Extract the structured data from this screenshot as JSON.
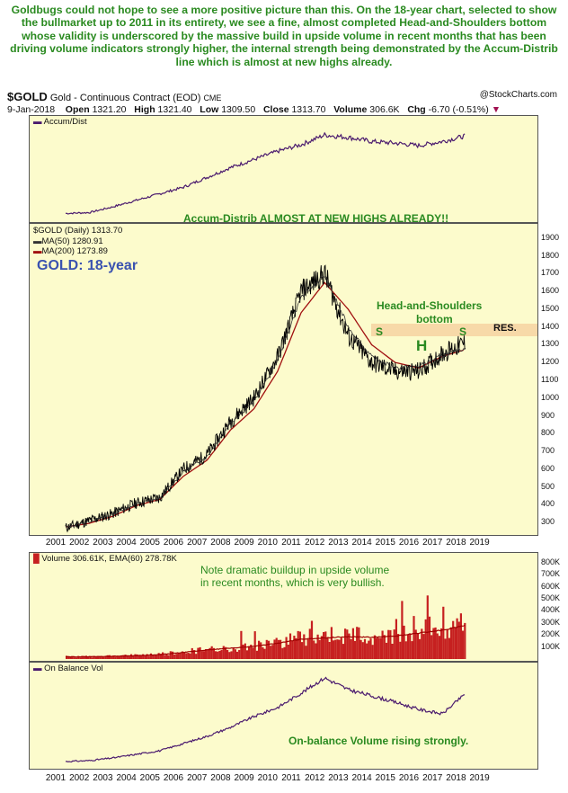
{
  "headline": "Goldbugs could not hope to see a more positive picture than this. On the 18-year chart, selected to show the bullmarket up to 2011 in its entirety, we see a fine, almost completed Head-and-Shoulders bottom whose validity is underscored by the massive build in upside volume in recent months that has been driving volume indicators strongly higher, the internal strength being demonstrated by the Accum-Distrib line which is almost at new highs already.",
  "header": {
    "symbol": "$GOLD",
    "description": "Gold - Continuous Contract (EOD)",
    "exchange": "CME",
    "date": "9-Jan-2018",
    "open_label": "Open",
    "open": "1321.20",
    "high_label": "High",
    "high": "1321.40",
    "low_label": "Low",
    "low": "1309.50",
    "close_label": "Close",
    "close": "1313.70",
    "volume_label": "Volume",
    "volume": "306.6K",
    "chg_label": "Chg",
    "chg": "-6.70 (-0.51%)",
    "watermark": "@StockCharts.com"
  },
  "colors": {
    "panel_bg": "#fcfbcc",
    "price": "#000000",
    "ma50": "#1a1a1a",
    "ma200": "#a01010",
    "volume": "#c62020",
    "ema": "#a00000",
    "indicator": "#4a1a6e",
    "annotation_green": "#2a8a20",
    "annotation_blue": "#3a52b0",
    "resistance_band": "#f7d9a8"
  },
  "panels": {
    "accum": {
      "legend": "Accum/Dist",
      "annotation": "Accum-Distrib ALMOST AT NEW HIGHS ALREADY!!"
    },
    "price": {
      "legend_symbol": "$GOLD (Daily) 1313.70",
      "legend_ma50": "MA(50) 1280.91",
      "legend_ma200": "MA(200) 1273.89",
      "title": "GOLD: 18-year",
      "hs_label_line1": "Head-and-Shoulders",
      "hs_label_line2": "bottom",
      "left_shoulder": "S",
      "head": "H",
      "right_shoulder": "S",
      "resistance": "RES."
    },
    "volume": {
      "legend": "Volume 306.61K, EMA(60) 278.78K",
      "note_line1": "Note dramatic buildup in upside volume",
      "note_line2": "in recent months, which is very bullish."
    },
    "obv": {
      "legend": "On Balance Vol",
      "annotation": "On-balance Volume rising strongly."
    }
  },
  "axes": {
    "price_ticks": [
      "1900",
      "1800",
      "1700",
      "1600",
      "1500",
      "1400",
      "1300",
      "1200",
      "1100",
      "1000",
      "900",
      "800",
      "700",
      "600",
      "500",
      "400",
      "300"
    ],
    "volume_ticks": [
      "800K",
      "700K",
      "600K",
      "500K",
      "400K",
      "300K",
      "200K",
      "100K"
    ],
    "year_ticks": [
      "2001",
      "2002",
      "2003",
      "2004",
      "2005",
      "2006",
      "2007",
      "2008",
      "2009",
      "2010",
      "2011",
      "2012",
      "2013",
      "2014",
      "2015",
      "2016",
      "2017",
      "2018",
      "2019"
    ]
  },
  "chart_data": [
    {
      "type": "line",
      "title": "Accum/Dist",
      "x": [
        "2001",
        "2002",
        "2003",
        "2004",
        "2005",
        "2006",
        "2007",
        "2008",
        "2009",
        "2010",
        "2011",
        "2012",
        "2013",
        "2014",
        "2015",
        "2016",
        "2017",
        "2018"
      ],
      "series": [
        {
          "name": "Accum/Dist",
          "values": [
            4,
            5,
            12,
            20,
            28,
            36,
            48,
            60,
            70,
            80,
            88,
            100,
            97,
            92,
            90,
            87,
            92,
            99
          ]
        }
      ],
      "ylim": [
        0,
        110
      ]
    },
    {
      "type": "line",
      "title": "$GOLD (Daily) 1313.70",
      "x": [
        "2001",
        "2002",
        "2003",
        "2004",
        "2005",
        "2006",
        "2007",
        "2008",
        "2009",
        "2010",
        "2011",
        "2012",
        "2013",
        "2014",
        "2015",
        "2016",
        "2017",
        "2018"
      ],
      "series": [
        {
          "name": "$GOLD",
          "values": [
            270,
            310,
            350,
            410,
            440,
            600,
            680,
            870,
            1000,
            1230,
            1600,
            1700,
            1350,
            1200,
            1150,
            1150,
            1250,
            1314
          ]
        },
        {
          "name": "MA(50)",
          "values": [
            272,
            305,
            345,
            405,
            438,
            585,
            670,
            860,
            980,
            1210,
            1570,
            1690,
            1400,
            1230,
            1170,
            1180,
            1240,
            1281
          ]
        },
        {
          "name": "MA(200)",
          "values": [
            275,
            295,
            335,
            395,
            430,
            560,
            650,
            820,
            940,
            1150,
            1480,
            1650,
            1500,
            1300,
            1200,
            1170,
            1235,
            1274
          ]
        }
      ],
      "ylim": [
        250,
        1950
      ]
    },
    {
      "type": "bar",
      "title": "Volume 306.61K, EMA(60) 278.78K",
      "x": [
        "2001",
        "2002",
        "2003",
        "2004",
        "2005",
        "2006",
        "2007",
        "2008",
        "2009",
        "2010",
        "2011",
        "2012",
        "2013",
        "2014",
        "2015",
        "2016",
        "2017",
        "2018"
      ],
      "series": [
        {
          "name": "Volume",
          "values": [
            20,
            20,
            25,
            30,
            40,
            60,
            80,
            95,
            110,
            140,
            180,
            190,
            200,
            190,
            200,
            230,
            250,
            300
          ]
        },
        {
          "name": "EMA(60)",
          "values": [
            18,
            19,
            23,
            28,
            36,
            55,
            75,
            90,
            105,
            130,
            165,
            175,
            185,
            180,
            190,
            215,
            240,
            279
          ]
        }
      ],
      "ylim": [
        0,
        850
      ]
    },
    {
      "type": "line",
      "title": "On Balance Vol",
      "x": [
        "2001",
        "2002",
        "2003",
        "2004",
        "2005",
        "2006",
        "2007",
        "2008",
        "2009",
        "2010",
        "2011",
        "2012",
        "2013",
        "2014",
        "2015",
        "2016",
        "2017",
        "2018"
      ],
      "series": [
        {
          "name": "On Balance Vol",
          "values": [
            2,
            3,
            6,
            10,
            14,
            22,
            30,
            40,
            52,
            62,
            78,
            95,
            82,
            75,
            68,
            60,
            55,
            78
          ]
        }
      ],
      "ylim": [
        0,
        100
      ]
    }
  ]
}
